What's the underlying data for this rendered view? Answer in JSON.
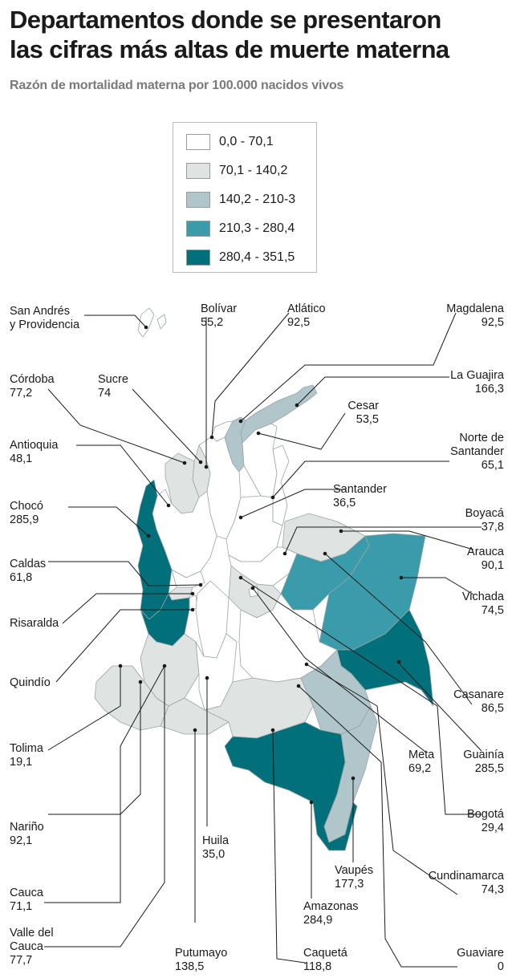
{
  "title_line1": "Departamentos donde se presentaron",
  "title_line2": "las cifras más altas de muerte materna",
  "subtitle": "Razón de mortalidad materna por 100.000 nacidos vivos",
  "legend": [
    {
      "label": "0,0 - 70,1",
      "color": "#ffffff"
    },
    {
      "label": "70,1 - 140,2",
      "color": "#dfe4e3"
    },
    {
      "label": "140,2 - 210-3",
      "color": "#b0c6ca"
    },
    {
      "label": "210,3 - 280,4",
      "color": "#3a9cab"
    },
    {
      "label": "280,4 - 351,5",
      "color": "#02707a"
    }
  ],
  "departments": {
    "san_andres": {
      "name_line1": "San Andrés",
      "name_line2": "y Providencia"
    },
    "bolivar": {
      "name": "Bolívar",
      "value": "55,2"
    },
    "atlantico": {
      "name": "Atlático",
      "value": "92,5"
    },
    "magdalena": {
      "name": "Magdalena",
      "value": "92,5"
    },
    "cordoba": {
      "name": "Córdoba",
      "value": "77,2"
    },
    "sucre": {
      "name": "Sucre",
      "value": "74"
    },
    "la_guajira": {
      "name": "La Guajira",
      "value": "166,3"
    },
    "cesar": {
      "name": "Cesar",
      "value": "53,5"
    },
    "antioquia": {
      "name": "Antioquia",
      "value": "48,1"
    },
    "norte_santander": {
      "name_line1": "Norte de",
      "name_line2": "Santander",
      "value": "65,1"
    },
    "santander": {
      "name": "Santander",
      "value": "36,5"
    },
    "choco": {
      "name": "Chocó",
      "value": "285,9"
    },
    "boyaca": {
      "name": "Boyacá",
      "value": "37,8"
    },
    "caldas": {
      "name": "Caldas",
      "value": "61,8"
    },
    "arauca": {
      "name": "Arauca",
      "value": "90,1"
    },
    "risaralda": {
      "name": "Risaralda"
    },
    "vichada": {
      "name": "Vichada",
      "value": "74,5"
    },
    "quindio": {
      "name": "Quindío"
    },
    "casanare": {
      "name": "Casanare",
      "value": "86,5"
    },
    "tolima": {
      "name": "Tolima",
      "value": "19,1"
    },
    "meta": {
      "name": "Meta",
      "value": "69,2"
    },
    "guainia": {
      "name": "Guainía",
      "value": "285,5"
    },
    "narino": {
      "name": "Nariño",
      "value": "92,1"
    },
    "bogota": {
      "name": "Bogotá",
      "value": "29,4"
    },
    "huila": {
      "name": "Huila",
      "value": "35,0"
    },
    "vaupes": {
      "name": "Vaupés",
      "value": "177,3"
    },
    "cauca": {
      "name": "Cauca",
      "value": "71,1"
    },
    "cundinamarca": {
      "name": "Cundinamarca",
      "value": "74,3"
    },
    "amazonas": {
      "name": "Amazonas",
      "value": "284,9"
    },
    "valle": {
      "name_line1": "Valle del",
      "name_line2": "Cauca",
      "value": "77,7"
    },
    "putumayo": {
      "name": "Putumayo",
      "value": "138,5"
    },
    "caqueta": {
      "name": "Caquetá",
      "value": "118,8"
    },
    "guaviare": {
      "name": "Guaviare",
      "value": "0"
    }
  }
}
